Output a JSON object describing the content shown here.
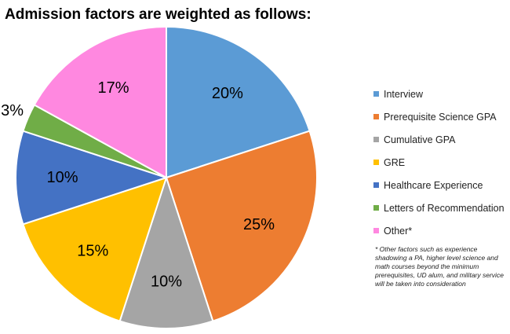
{
  "title": "Admission factors are weighted as follows:",
  "chart_data": {
    "type": "pie",
    "title": "Admission factors are weighted as follows:",
    "slices": [
      {
        "name": "Interview",
        "value": 20,
        "label": "20%",
        "color": "#5B9BD5"
      },
      {
        "name": "Prerequisite Science GPA",
        "value": 25,
        "label": "25%",
        "color": "#ED7D31"
      },
      {
        "name": "Cumulative GPA",
        "value": 10,
        "label": "10%",
        "color": "#A5A5A5"
      },
      {
        "name": "GRE",
        "value": 15,
        "label": "15%",
        "color": "#FFC000"
      },
      {
        "name": "Healthcare Experience",
        "value": 10,
        "label": "10%",
        "color": "#4472C4"
      },
      {
        "name": "Letters of Recommendation",
        "value": 3,
        "label": "3%",
        "color": "#70AD47"
      },
      {
        "name": "Other*",
        "value": 17,
        "label": "17%",
        "color": "#FF88E0"
      }
    ],
    "legend_position": "right",
    "start": "top, clockwise"
  },
  "footnote": "* Other factors such as experience shadowing a PA, higher level science and math courses beyond the minimum prerequisites, UD alum, and military service will be taken into consideration"
}
